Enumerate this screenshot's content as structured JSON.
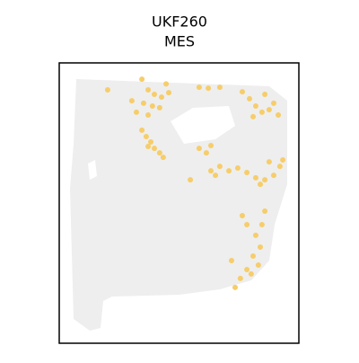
{
  "chart_data": {
    "type": "scatter",
    "title": "UKF260",
    "subtitle": "MES",
    "xlim": [
      0,
      100
    ],
    "ylim": [
      0,
      100
    ],
    "color": "#f6cd6a",
    "background_color": "#eeeeee",
    "x": [
      34.5,
      37.1,
      39.7,
      42.7,
      45.7,
      35.2,
      38.9,
      41.9,
      32.2,
      37.1,
      44.6,
      20.2,
      30.3,
      34.5,
      36.3,
      38.2,
      39.7,
      41.9,
      37.1,
      43.4,
      58.4,
      62.2,
      67.0,
      76.4,
      79.4,
      82.0,
      84.6,
      87.6,
      91.4,
      80.9,
      85.8,
      89.5,
      58.4,
      61.4,
      63.3,
      63.3,
      67.0,
      70.8,
      74.5,
      78.3,
      82.0,
      85.8,
      89.5,
      92.1,
      87.6,
      93.3,
      65.2,
      54.7,
      83.9,
      76.4,
      78.3,
      85.8,
      84.6,
      82.0,
      83.9,
      80.9,
      83.1,
      78.3,
      75.6,
      73.4,
      71.9,
      80.1
    ],
    "y": [
      94.2,
      90.4,
      88.8,
      87.8,
      89.4,
      85.6,
      84.6,
      84.0,
      82.4,
      81.4,
      92.5,
      90.4,
      86.5,
      76.0,
      73.7,
      71.8,
      69.5,
      67.9,
      70.2,
      66.3,
      91.3,
      91.0,
      91.3,
      89.7,
      87.2,
      84.6,
      82.4,
      83.3,
      81.4,
      80.8,
      88.8,
      85.6,
      69.5,
      67.9,
      70.5,
      61.5,
      63.1,
      61.5,
      62.5,
      60.9,
      59.0,
      58.3,
      59.9,
      63.1,
      64.7,
      65.4,
      59.9,
      58.3,
      56.7,
      45.5,
      42.3,
      47.1,
      42.3,
      38.5,
      34.3,
      31.1,
      27.9,
      26.3,
      23.1,
      19.9,
      29.5,
      24.7
    ]
  }
}
